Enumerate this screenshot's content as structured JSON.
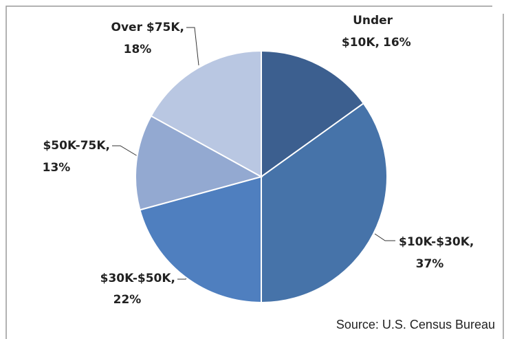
{
  "chart_data": {
    "type": "pie",
    "categories": [
      "Under $10K,",
      "$10K-$30K,",
      "$30K-$50K,",
      "$50K-75K,",
      "Over $75K,"
    ],
    "values": [
      16,
      37,
      22,
      13,
      18
    ],
    "value_labels": [
      "16%",
      "37%",
      "22%",
      "13%",
      "18%"
    ],
    "colors": [
      "#3c5f8f",
      "#4673a9",
      "#4f7fbf",
      "#93a9d1",
      "#b9c7e2"
    ],
    "source": "Source: U.S. Census Bureau"
  }
}
